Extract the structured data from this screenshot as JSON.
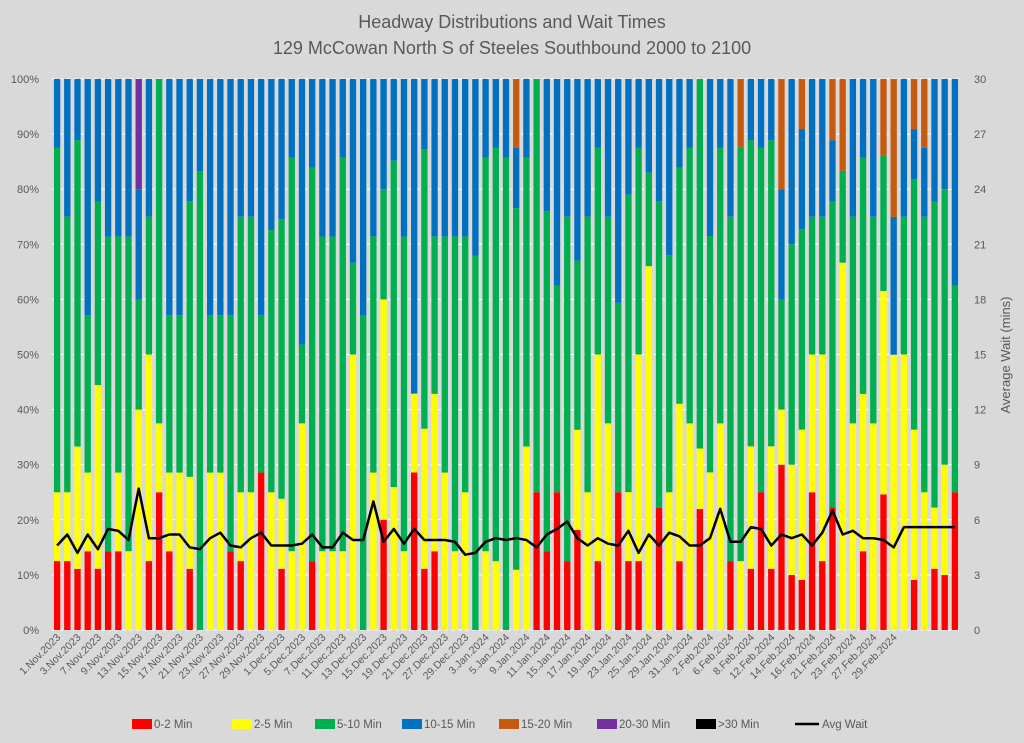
{
  "chart_data": {
    "type": "bar",
    "stacked": true,
    "title": "Headway Distributions and Wait Times",
    "subtitle": "129 McCowan North  S of Steeles Southbound 2000 to 2100",
    "ylabel_left": "",
    "ylabel_right": "Average Wait (mins)",
    "ylim_left": [
      0,
      100
    ],
    "ylim_right": [
      0,
      30
    ],
    "yticks_left": [
      "0%",
      "10%",
      "20%",
      "30%",
      "40%",
      "50%",
      "60%",
      "70%",
      "80%",
      "90%",
      "100%"
    ],
    "yticks_right": [
      "0",
      "3",
      "6",
      "9",
      "12",
      "15",
      "18",
      "21",
      "24",
      "27",
      "30"
    ],
    "grid": true,
    "legend_position": "bottom",
    "colors": {
      "0-2 Min": "#ff0000",
      "2-5 Min": "#ffff00",
      "5-10 Min": "#00b050",
      "10-15 Min": "#0070c0",
      "15-20 Min": "#c55a11",
      "20-30 Min": "#7030a0",
      ">30 Min": "#000000",
      "Avg Wait": "#000000"
    },
    "legend": [
      "0-2 Min",
      "2-5 Min",
      "5-10 Min",
      "10-15 Min",
      "15-20 Min",
      "20-30 Min",
      ">30 Min",
      "Avg Wait"
    ],
    "x_tick_labels": [
      "1.Nov.2023",
      "3.Nov.2023",
      "7.Nov.2023",
      "9.Nov.2023",
      "13.Nov.2023",
      "15.Nov.2023",
      "17.Nov.2023",
      "21.Nov.2023",
      "23.Nov.2023",
      "27.Nov.2023",
      "29.Nov.2023",
      "1.Dec.2023",
      "5.Dec.2023",
      "7.Dec.2023",
      "11.Dec.2023",
      "13.Dec.2023",
      "15.Dec.2023",
      "19.Dec.2023",
      "21.Dec.2023",
      "27.Dec.2023",
      "29.Dec.2023",
      "3.Jan.2024",
      "5.Jan.2024",
      "9.Jan.2024",
      "11.Jan.2024",
      "15.Jan.2024",
      "17.Jan.2024",
      "19.Jan.2024",
      "23.Jan.2024",
      "25.Jan.2024",
      "29.Jan.2024",
      "31.Jan.2024",
      "2.Feb.2024",
      "6.Feb.2024",
      "8.Feb.2024",
      "12.Feb.2024",
      "14.Feb.2024",
      "16.Feb.2024",
      "21.Feb.2024",
      "23.Feb.2024",
      "27.Feb.2024",
      "29.Feb.2024"
    ],
    "series": [
      {
        "name": "0-2 Min",
        "values": [
          12.5,
          12.5,
          11.1,
          14.3,
          11.1,
          14.3,
          14.3,
          0,
          0,
          12.5,
          25,
          14.3,
          0,
          11.1,
          0,
          0,
          0,
          14.3,
          12.5,
          0,
          25,
          0,
          12.5,
          0,
          0,
          12.5,
          0,
          0,
          0,
          0,
          0,
          0,
          14.3,
          0,
          0,
          28.6,
          12.5,
          14.3,
          0,
          0,
          0,
          0,
          0,
          0,
          0,
          0,
          0,
          25,
          14.3,
          25,
          12.5,
          22.2,
          0,
          12.5,
          0,
          25,
          14.3,
          12.5,
          0,
          22.2,
          0,
          12.5,
          0,
          22.2,
          0,
          0,
          12.5,
          0,
          12.5,
          25,
          12.5,
          37.5,
          12.5,
          12.5,
          25,
          12.5,
          25,
          0,
          0,
          12.5,
          0,
          22.2,
          0,
          0,
          12.5,
          0,
          12.5,
          12.5,
          25
        ]
      },
      {
        "name": "2-5 Min",
        "values": [
          12.5,
          12.5,
          22.2,
          14.3,
          33.3,
          0,
          14.3,
          14.3,
          40,
          37.5,
          12.5,
          14.3,
          28.6,
          16.7,
          0,
          28.6,
          28.6,
          0,
          12.5,
          25,
          0,
          25,
          14.3,
          14.3,
          37.5,
          0,
          14.3,
          14.3,
          14.3,
          42.9,
          0,
          28.6,
          28.6,
          25,
          14.3,
          14.3,
          28.6,
          28.6,
          28.6,
          14.3,
          25,
          0,
          14.3,
          12.5,
          0,
          12.5,
          33.3,
          0,
          0,
          0,
          0,
          22.2,
          25,
          37.5,
          37.5,
          0,
          14.3,
          37.5,
          55.6,
          0,
          25,
          28.6,
          37.5,
          11.1,
          28.6,
          37.5,
          0,
          12.5,
          25,
          0,
          25,
          12.5,
          25,
          37.5,
          25,
          37.5,
          0,
          50,
          37.5,
          25,
          37.5,
          33.3,
          57.1,
          50,
          37.5,
          25,
          12.5,
          25,
          0
        ]
      },
      {
        "name": "5-10 Min",
        "values": [
          62.5,
          50,
          55.6,
          28.6,
          33.3,
          57.1,
          42.9,
          57.1,
          20,
          25,
          62.5,
          28.6,
          28.6,
          50,
          83.3,
          28.6,
          28.6,
          42.9,
          50,
          50,
          25,
          47.6,
          57.1,
          71.4,
          14.3,
          71.4,
          57.1,
          57.1,
          71.4,
          14.3,
          57.1,
          42.9,
          14.3,
          57.1,
          57.1,
          0,
          57.1,
          28.6,
          42.9,
          57.1,
          46.4,
          60.7,
          71.4,
          75,
          85.7,
          75,
          52.4,
          75,
          61.7,
          37.5,
          62.5,
          37.5,
          50,
          37.5,
          37.5,
          34.4,
          61.7,
          37.5,
          14.3,
          55.6,
          43,
          42.9,
          50,
          67.8,
          42.9,
          50,
          62.5,
          75,
          62.5,
          62.5,
          62.5,
          25,
          50,
          50,
          25,
          25,
          62.5,
          12.5,
          37.5,
          37.5,
          37.5,
          22.2,
          0,
          25,
          62.5,
          50,
          62.5,
          62.5,
          37.5
        ]
      },
      {
        "name": "10-15 Min",
        "values": [
          12.5,
          25,
          11.1,
          42.9,
          22.2,
          28.6,
          28.6,
          28.6,
          20,
          25,
          0,
          42.9,
          42.9,
          22.2,
          16.7,
          42.9,
          42.9,
          42.9,
          25,
          25,
          37.5,
          27.4,
          28.6,
          14.3,
          48.2,
          16.1,
          28.6,
          28.6,
          14.3,
          28.6,
          42.9,
          28.6,
          14.3,
          14.3,
          28.6,
          57.1,
          14.3,
          28.6,
          28.6,
          28.6,
          28.6,
          28.6,
          14.3,
          12.5,
          14.3,
          12.5,
          14.3,
          0,
          24,
          37.5,
          25,
          40.3,
          25,
          12.5,
          25,
          40.6,
          24,
          12.5,
          14.3,
          22.2,
          32,
          16.1,
          12.5,
          0,
          28.5,
          12.5,
          25,
          0,
          12.5,
          12.5,
          12.5,
          25,
          37.5,
          25,
          25,
          25,
          12.5,
          0,
          25,
          12.5,
          25,
          0,
          28.6,
          25,
          12.5,
          12.5,
          25,
          25,
          37.5
        ]
      },
      {
        "name": "15-20 Min",
        "values": [
          0,
          0,
          0,
          0,
          0,
          0,
          0,
          0,
          0,
          0,
          0,
          0,
          0,
          0,
          0,
          0,
          0,
          0,
          0,
          0,
          0,
          0,
          0,
          0,
          0,
          0,
          0,
          0,
          0,
          0,
          0,
          0,
          0,
          0,
          0,
          0,
          0,
          0,
          0,
          0,
          0,
          0,
          0,
          0,
          0,
          14.3,
          0,
          0,
          0,
          0,
          0,
          0,
          0,
          0,
          0,
          0,
          0,
          0,
          0,
          0,
          0,
          0,
          0,
          0,
          0,
          0,
          0,
          12.5,
          0,
          0,
          0,
          25,
          0,
          12.5,
          0,
          0,
          12.5,
          12.5,
          0,
          0,
          0,
          12.5,
          28.6,
          0,
          12.5,
          12.5,
          0,
          0,
          0
        ]
      },
      {
        "name": "20-30 Min",
        "values": [
          0,
          0,
          0,
          0,
          0,
          0,
          0,
          0,
          20,
          0,
          0,
          0,
          0,
          0,
          0,
          0,
          0,
          0,
          0,
          0,
          0,
          0,
          0,
          0,
          0,
          0,
          0,
          0,
          0,
          0,
          0,
          0,
          0,
          0,
          0,
          0,
          0,
          0,
          0,
          0,
          0,
          0,
          0,
          0,
          0,
          0,
          0,
          0,
          0,
          0,
          0,
          0,
          0,
          0,
          0,
          0,
          0,
          0,
          0,
          0,
          0,
          0,
          0,
          0,
          0,
          0,
          0,
          0,
          0,
          0,
          0,
          0,
          0,
          0,
          0,
          0,
          0,
          0,
          0,
          0,
          0,
          0,
          0,
          0,
          0,
          0,
          0,
          0,
          0
        ]
      },
      {
        "name": ">30 Min",
        "values": [
          0,
          0,
          0,
          0,
          0,
          0,
          0,
          0,
          0,
          0,
          0,
          0,
          0,
          0,
          0,
          0,
          0,
          0,
          0,
          0,
          0,
          0,
          0,
          0,
          0,
          0,
          0,
          0,
          0,
          0,
          0,
          0,
          0,
          0,
          0,
          0,
          0,
          0,
          0,
          0,
          0,
          0,
          0,
          0,
          0,
          0,
          0,
          0,
          0,
          0,
          0,
          0,
          0,
          0,
          0,
          0,
          0,
          0,
          0,
          0,
          0,
          0,
          0,
          0,
          0,
          0,
          0,
          0,
          0,
          0,
          0,
          0,
          0,
          0,
          0,
          0,
          0,
          0,
          0,
          0,
          0,
          0,
          0,
          0,
          0,
          0,
          0,
          0,
          0
        ]
      },
      {
        "name": "Avg Wait",
        "axis": "right",
        "values": [
          4.6,
          5.2,
          4.2,
          5.2,
          4.4,
          5.5,
          5.4,
          4.9,
          7.7,
          5.0,
          5.0,
          5.2,
          5.2,
          4.5,
          4.4,
          5.0,
          5.3,
          4.6,
          4.5,
          5.0,
          5.3,
          4.6,
          4.6,
          4.6,
          4.7,
          5.2,
          4.5,
          4.5,
          5.3,
          4.9,
          4.9,
          7.0,
          4.8,
          5.5,
          4.7,
          5.5,
          4.9,
          4.9,
          4.9,
          4.8,
          4.1,
          4.2,
          4.8,
          5.0,
          4.9,
          5.0,
          4.9,
          4.5,
          5.2,
          5.5,
          5.9,
          5.0,
          4.6,
          5.0,
          4.7,
          4.6,
          5.4,
          4.2,
          5.2,
          4.6,
          5.3,
          5.1,
          4.6,
          4.6,
          5.0,
          6.6,
          4.8,
          4.8,
          5.6,
          5.5,
          4.6,
          5.2,
          5.0,
          5.2,
          4.6,
          5.3,
          6.5,
          5.2,
          5.4,
          5.0,
          5.0,
          4.9,
          4.5,
          5.6,
          5.6,
          5.6,
          5.6,
          5.6,
          5.6
        ]
      }
    ]
  }
}
